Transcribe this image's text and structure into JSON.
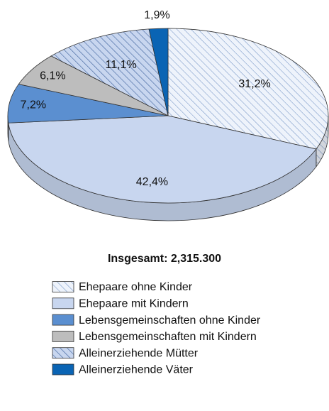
{
  "chart_data": {
    "type": "pie",
    "subtitle": "Insgesamt: 2,315.300",
    "categories": [
      "Ehepaare ohne Kinder",
      "Ehepaare mit Kindern",
      "Lebensgemeinschaften ohne Kinder",
      "Lebensgemeinschaften mit Kindern",
      "Alleinerziehende Mütter",
      "Alleinerziehende Väter"
    ],
    "values": [
      31.2,
      42.4,
      7.2,
      6.1,
      11.1,
      1.9
    ],
    "value_labels": [
      "31,2%",
      "42,4%",
      "7,2%",
      "6,1%",
      "11,1%",
      "1,9%"
    ],
    "colors": [
      "#eef3fb",
      "#c8d6ef",
      "#5b8fd0",
      "#bdbdbd",
      "#c8d6ef",
      "#0a64b4"
    ],
    "hatched": [
      true,
      false,
      false,
      false,
      true,
      false
    ]
  }
}
